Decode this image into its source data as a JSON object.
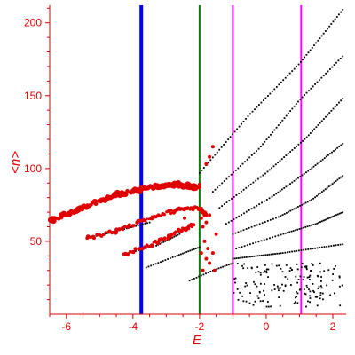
{
  "chart_data": {
    "type": "scatter",
    "xlabel": "E",
    "ylabel": "<n>",
    "xlim": [
      -6.5,
      2.4
    ],
    "ylim": [
      0,
      212
    ],
    "grid": false,
    "x_ticks": [
      -6,
      -4,
      -2,
      0,
      2
    ],
    "y_ticks": [
      50,
      100,
      150,
      200
    ],
    "colors": {
      "axes": "#e00000",
      "highlighted_points": "#e00000",
      "points": "#000000",
      "vline_blue": "#0000ff",
      "vline_green": "#008000",
      "vline_magenta": "#ff00ff"
    },
    "vertical_lines": [
      {
        "x": -3.75,
        "color": "#0000ff",
        "style": "thick"
      },
      {
        "x": -2.0,
        "color": "#008000",
        "style": "thin"
      },
      {
        "x": -1.0,
        "color": "#ff00ff",
        "style": "thin"
      },
      {
        "x": 1.05,
        "color": "#ff00ff",
        "style": "thin"
      }
    ],
    "series": [
      {
        "color": "#e00000",
        "marker": "large",
        "bands": [
          {
            "x": [
              -6.5,
              -5.5,
              -4.5,
              -3.5,
              -2.7,
              -2.1
            ],
            "y": [
              64,
              73,
              82,
              87,
              89,
              87
            ]
          },
          {
            "x": [
              -5.4,
              -4.5,
              -3.5,
              -2.6,
              -2.0,
              -1.8
            ],
            "y": [
              52,
              57,
              66,
              72,
              73,
              68
            ]
          },
          {
            "x": [
              -4.3,
              -3.3,
              -2.6,
              -2.2
            ],
            "y": [
              41,
              49,
              57,
              61
            ]
          }
        ]
      },
      {
        "color": "#000000",
        "marker": "small",
        "bands": [
          {
            "x": [
              -2.0,
              -0.5,
              1.0,
              2.3
            ],
            "y": [
              97,
              137,
              172,
              209
            ]
          },
          {
            "x": [
              -1.6,
              -0.2,
              1.0,
              2.3
            ],
            "y": [
              84,
              114,
              147,
              177
            ]
          },
          {
            "x": [
              -1.4,
              0.0,
              1.2,
              2.3
            ],
            "y": [
              73,
              97,
              121,
              148
            ]
          },
          {
            "x": [
              -1.2,
              0.2,
              1.3,
              2.3
            ],
            "y": [
              62,
              81,
              99,
              117
            ]
          },
          {
            "x": [
              -1.0,
              0.4,
              1.4,
              2.3
            ],
            "y": [
              55,
              67,
              79,
              95
            ]
          },
          {
            "x": [
              -0.9,
              0.5,
              1.5,
              2.3
            ],
            "y": [
              45,
              55,
              62,
              70
            ]
          },
          {
            "x": [
              -1.0,
              0.5,
              2.3
            ],
            "y": [
              38,
              42,
              48
            ]
          },
          {
            "x": [
              -5.4,
              -4.5,
              -3.5
            ],
            "y": [
              52,
              57,
              63
            ]
          },
          {
            "x": [
              -4.3,
              -3.3,
              -2.6
            ],
            "y": [
              41,
              47,
              55
            ]
          },
          {
            "x": [
              -3.6,
              -2.7,
              -2.0
            ],
            "y": [
              32,
              40,
              46
            ]
          },
          {
            "x": [
              -2.3,
              -1.6,
              -1.0
            ],
            "y": [
              23,
              30,
              35
            ]
          }
        ],
        "cluster": {
          "x_range": [
            -1.0,
            2.3
          ],
          "y_range": [
            5,
            35
          ],
          "count": 160
        }
      }
    ]
  }
}
